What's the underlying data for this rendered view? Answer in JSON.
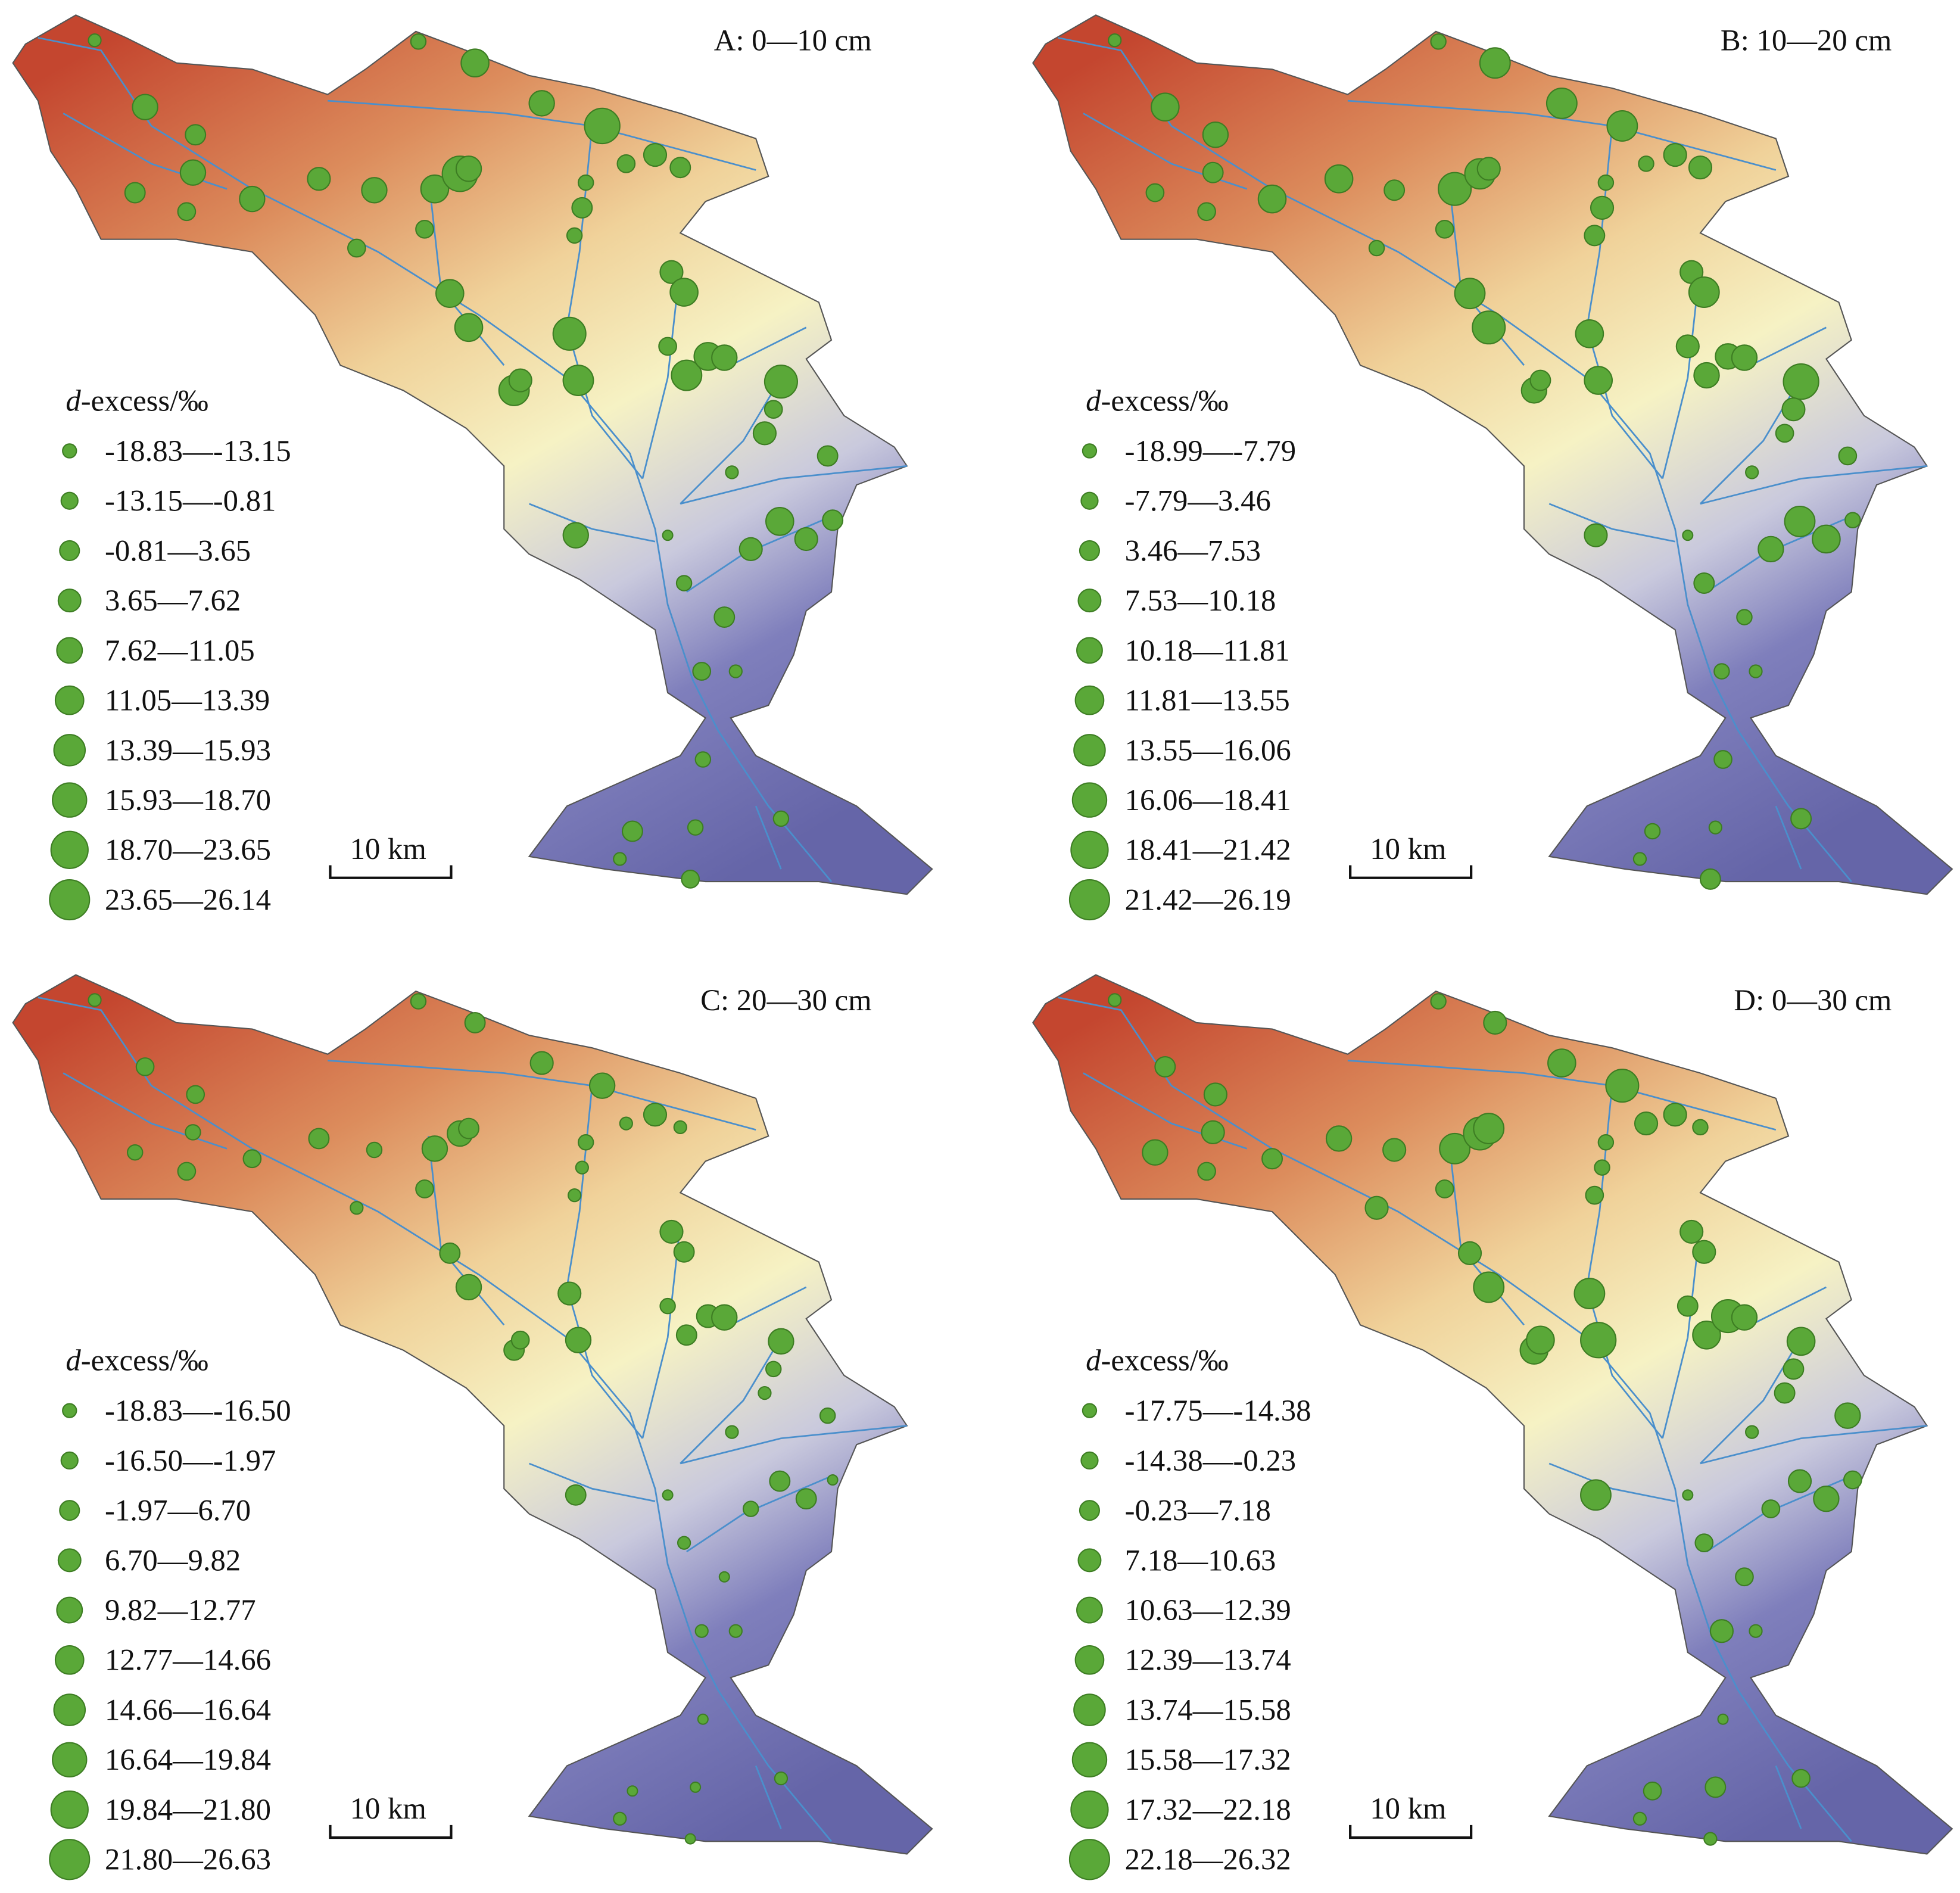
{
  "panels": [
    {
      "title": "A: 0—10 cm",
      "legend_title": {
        "italic": "d",
        "text": "-excess/‰"
      },
      "legend": [
        "-18.83—-13.15",
        "-13.15—-0.81",
        "-0.81—3.65",
        "3.65—7.62",
        "7.62—11.05",
        "11.05—13.39",
        "13.39—15.93",
        "15.93—18.70",
        "18.70—23.65",
        "23.65—26.14"
      ],
      "scale_bar": "10 km"
    },
    {
      "title": "B: 10—20 cm",
      "legend_title": {
        "italic": "d",
        "text": "-excess/‰"
      },
      "legend": [
        "-18.99—-7.79",
        "-7.79—3.46",
        "3.46—7.53",
        "7.53—10.18",
        "10.18—11.81",
        "11.81—13.55",
        "13.55—16.06",
        "16.06—18.41",
        "18.41—21.42",
        "21.42—26.19"
      ],
      "scale_bar": "10 km"
    },
    {
      "title": "C: 20—30 cm",
      "legend_title": {
        "italic": "d",
        "text": "-excess/‰"
      },
      "legend": [
        "-18.83—-16.50",
        "-16.50—-1.97",
        "-1.97—6.70",
        "6.70—9.82",
        "9.82—12.77",
        "12.77—14.66",
        "14.66—16.64",
        "16.64—19.84",
        "19.84—21.80",
        "21.80—26.63"
      ],
      "scale_bar": "10 km"
    },
    {
      "title": "D: 0—30 cm",
      "legend_title": {
        "italic": "d",
        "text": "-excess/‰"
      },
      "legend": [
        "-17.75—-14.38",
        "-14.38—-0.23",
        "-0.23—7.18",
        "7.18—10.63",
        "10.63—12.39",
        "12.39—13.74",
        "13.74—15.58",
        "15.58—17.32",
        "17.32—22.18",
        "22.18—26.32"
      ],
      "scale_bar": "10 km"
    }
  ]
}
